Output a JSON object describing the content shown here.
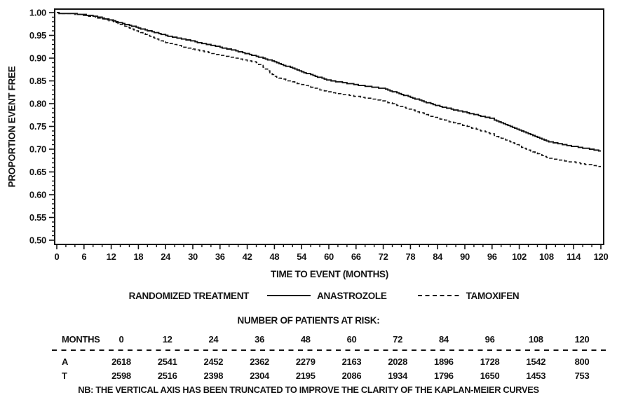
{
  "colors": {
    "line": "#141414",
    "text": "#141414",
    "background": "#ffffff"
  },
  "chart_data": {
    "type": "line",
    "subtype": "kaplan-meier-step",
    "title": "",
    "xlabel": "TIME TO EVENT (MONTHS)",
    "ylabel": "PROPORTION EVENT FREE",
    "xlim": [
      0,
      120
    ],
    "ylim": [
      0.5,
      1.0
    ],
    "x_ticks": [
      0,
      6,
      12,
      18,
      24,
      30,
      36,
      42,
      48,
      54,
      60,
      66,
      72,
      78,
      84,
      90,
      96,
      102,
      108,
      114,
      120
    ],
    "x_minor_tick_step": 2,
    "y_ticks": [
      1.0,
      0.95,
      0.9,
      0.85,
      0.8,
      0.75,
      0.7,
      0.65,
      0.6,
      0.55,
      0.5
    ],
    "y_minor_tick_step": 0.01,
    "grid": false,
    "legend_position": "below",
    "legend_title": "RANDOMIZED TREATMENT",
    "note": "Vertical axis truncated at 0.50",
    "series": [
      {
        "name": "ANASTROZOLE",
        "style": "solid",
        "points": [
          [
            0,
            1.0
          ],
          [
            2,
            0.9995
          ],
          [
            4,
            0.998
          ],
          [
            6,
            0.996
          ],
          [
            8,
            0.9935
          ],
          [
            10,
            0.989
          ],
          [
            12,
            0.984
          ],
          [
            14,
            0.9785
          ],
          [
            16,
            0.973
          ],
          [
            18,
            0.967
          ],
          [
            20,
            0.9615
          ],
          [
            22,
            0.956
          ],
          [
            24,
            0.951
          ],
          [
            27,
            0.9445
          ],
          [
            30,
            0.938
          ],
          [
            33,
            0.9315
          ],
          [
            36,
            0.925
          ],
          [
            39,
            0.918
          ],
          [
            42,
            0.9105
          ],
          [
            45,
            0.902
          ],
          [
            48,
            0.893
          ],
          [
            51,
            0.882
          ],
          [
            54,
            0.871
          ],
          [
            57,
            0.861
          ],
          [
            60,
            0.852
          ],
          [
            63,
            0.8475
          ],
          [
            66,
            0.8425
          ],
          [
            69,
            0.8385
          ],
          [
            72,
            0.834
          ],
          [
            75,
            0.8245
          ],
          [
            78,
            0.815
          ],
          [
            81,
            0.8055
          ],
          [
            84,
            0.796
          ],
          [
            87,
            0.789
          ],
          [
            90,
            0.782
          ],
          [
            93,
            0.775
          ],
          [
            96,
            0.768
          ],
          [
            99,
            0.7555
          ],
          [
            102,
            0.743
          ],
          [
            105,
            0.7305
          ],
          [
            108,
            0.718
          ],
          [
            111,
            0.712
          ],
          [
            114,
            0.707
          ],
          [
            117,
            0.702
          ],
          [
            120,
            0.697
          ]
        ]
      },
      {
        "name": "TAMOXIFEN",
        "style": "dashed",
        "points": [
          [
            0,
            1.0
          ],
          [
            2,
            0.9995
          ],
          [
            4,
            0.9975
          ],
          [
            6,
            0.995
          ],
          [
            8,
            0.992
          ],
          [
            10,
            0.9875
          ],
          [
            12,
            0.982
          ],
          [
            14,
            0.975
          ],
          [
            16,
            0.967
          ],
          [
            18,
            0.959
          ],
          [
            20,
            0.951
          ],
          [
            22,
            0.943
          ],
          [
            24,
            0.935
          ],
          [
            27,
            0.928
          ],
          [
            30,
            0.921
          ],
          [
            33,
            0.914
          ],
          [
            36,
            0.907
          ],
          [
            39,
            0.9015
          ],
          [
            42,
            0.8955
          ],
          [
            44,
            0.8915
          ],
          [
            46,
            0.8765
          ],
          [
            48,
            0.86
          ],
          [
            51,
            0.8515
          ],
          [
            54,
            0.843
          ],
          [
            57,
            0.8345
          ],
          [
            60,
            0.826
          ],
          [
            63,
            0.8215
          ],
          [
            66,
            0.817
          ],
          [
            69,
            0.812
          ],
          [
            72,
            0.807
          ],
          [
            75,
            0.7975
          ],
          [
            78,
            0.788
          ],
          [
            81,
            0.7785
          ],
          [
            84,
            0.769
          ],
          [
            87,
            0.7605
          ],
          [
            90,
            0.752
          ],
          [
            93,
            0.743
          ],
          [
            96,
            0.734
          ],
          [
            99,
            0.721
          ],
          [
            102,
            0.708
          ],
          [
            105,
            0.695
          ],
          [
            108,
            0.682
          ],
          [
            111,
            0.677
          ],
          [
            114,
            0.672
          ],
          [
            117,
            0.667
          ],
          [
            120,
            0.662
          ]
        ]
      }
    ]
  },
  "risk_table": {
    "title": "NUMBER OF PATIENTS AT RISK:",
    "months_label": "MONTHS",
    "columns": [
      "0",
      "12",
      "24",
      "36",
      "48",
      "60",
      "72",
      "84",
      "96",
      "108",
      "120"
    ],
    "rows": [
      {
        "label": "A",
        "values": [
          "2618",
          "2541",
          "2452",
          "2362",
          "2279",
          "2163",
          "2028",
          "1896",
          "1728",
          "1542",
          "800"
        ]
      },
      {
        "label": "T",
        "values": [
          "2598",
          "2516",
          "2398",
          "2304",
          "2195",
          "2086",
          "1934",
          "1796",
          "1650",
          "1453",
          "753"
        ]
      }
    ],
    "note": "NB: THE VERTICAL AXIS HAS BEEN TRUNCATED TO IMPROVE THE CLARITY OF THE KAPLAN-MEIER CURVES"
  }
}
